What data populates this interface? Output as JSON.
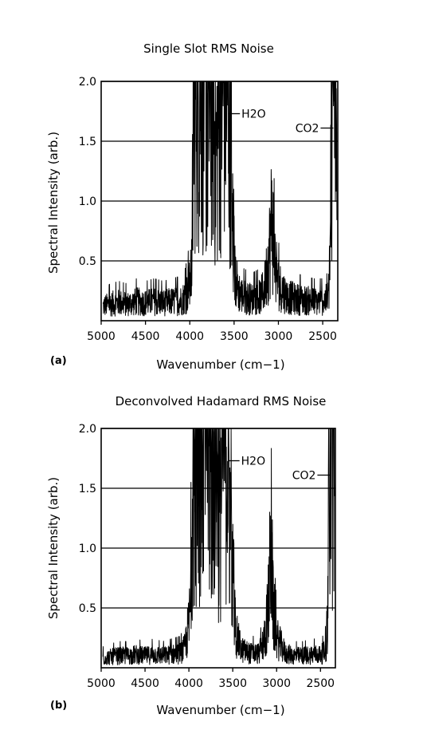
{
  "chart_data": [
    {
      "panel_label": "(a)",
      "type": "line",
      "title": "Single Slot RMS Noise",
      "xlabel": "Wavenumber (cm−1)",
      "ylabel": "Spectral Intensity (arb.)",
      "xlim": [
        5000,
        2330
      ],
      "ylim": [
        0,
        2.0
      ],
      "x_ticks": [
        5000,
        4500,
        4000,
        3500,
        3000,
        2500
      ],
      "x_tick_labels": [
        "5000",
        "4500",
        "4000",
        "3500",
        "3000",
        "2500"
      ],
      "y_ticks": [
        0.5,
        1.0,
        1.5,
        2.0
      ],
      "y_tick_labels": [
        "0.5",
        "1.0",
        "1.5",
        "2.0"
      ],
      "grid": "horizontal",
      "annotations": [
        {
          "text": "H2O",
          "x": 3560,
          "y": 1.73
        },
        {
          "text": "CO2",
          "x": 2380,
          "y": 1.61
        }
      ],
      "series": [
        {
          "values": [
            [
              4980,
              0.12
            ],
            [
              4900,
              0.14
            ],
            [
              4800,
              0.15
            ],
            [
              4700,
              0.14
            ],
            [
              4600,
              0.16
            ],
            [
              4500,
              0.15
            ],
            [
              4400,
              0.16
            ],
            [
              4300,
              0.15
            ],
            [
              4200,
              0.16
            ],
            [
              4100,
              0.17
            ],
            [
              4050,
              0.2
            ],
            [
              4000,
              0.3
            ],
            [
              3980,
              0.4
            ],
            [
              3950,
              2.0
            ],
            [
              3900,
              2.0
            ],
            [
              3850,
              2.0
            ],
            [
              3800,
              1.6
            ],
            [
              3750,
              2.0
            ],
            [
              3700,
              1.3
            ],
            [
              3650,
              2.0
            ],
            [
              3600,
              2.0
            ],
            [
              3550,
              1.8
            ],
            [
              3520,
              0.9
            ],
            [
              3500,
              0.4
            ],
            [
              3450,
              0.25
            ],
            [
              3400,
              0.2
            ],
            [
              3300,
              0.18
            ],
            [
              3200,
              0.2
            ],
            [
              3150,
              0.3
            ],
            [
              3100,
              0.6
            ],
            [
              3070,
              0.9
            ],
            [
              3050,
              0.55
            ],
            [
              3000,
              0.3
            ],
            [
              2900,
              0.2
            ],
            [
              2800,
              0.18
            ],
            [
              2700,
              0.17
            ],
            [
              2600,
              0.16
            ],
            [
              2500,
              0.16
            ],
            [
              2450,
              0.18
            ],
            [
              2420,
              0.3
            ],
            [
              2400,
              2.0
            ],
            [
              2380,
              2.0
            ],
            [
              2360,
              1.5
            ],
            [
              2350,
              2.0
            ],
            [
              2340,
              1.0
            ]
          ]
        }
      ]
    },
    {
      "panel_label": "(b)",
      "type": "line",
      "title": "Deconvolved Hadamard RMS Noise",
      "xlabel": "Wavenumber (cm−1)",
      "ylabel": "Spectral Intensity (arb.)",
      "xlim": [
        5000,
        2330
      ],
      "ylim": [
        0,
        2.0
      ],
      "x_ticks": [
        5000,
        4500,
        4000,
        3500,
        3000,
        2500
      ],
      "x_tick_labels": [
        "5000",
        "4500",
        "4000",
        "3500",
        "3000",
        "2500"
      ],
      "y_ticks": [
        0.5,
        1.0,
        1.5,
        2.0
      ],
      "y_tick_labels": [
        "0.5",
        "1.0",
        "1.5",
        "2.0"
      ],
      "grid": "horizontal",
      "annotations": [
        {
          "text": "H2O",
          "x": 3550,
          "y": 1.73
        },
        {
          "text": "CO2",
          "x": 2390,
          "y": 1.61
        }
      ],
      "series": [
        {
          "values": [
            [
              4980,
              0.08
            ],
            [
              4900,
              0.09
            ],
            [
              4800,
              0.1
            ],
            [
              4700,
              0.1
            ],
            [
              4600,
              0.11
            ],
            [
              4500,
              0.1
            ],
            [
              4400,
              0.11
            ],
            [
              4300,
              0.1
            ],
            [
              4200,
              0.11
            ],
            [
              4100,
              0.12
            ],
            [
              4050,
              0.16
            ],
            [
              4000,
              0.35
            ],
            [
              3980,
              0.55
            ],
            [
              3950,
              2.0
            ],
            [
              3900,
              2.0
            ],
            [
              3850,
              2.0
            ],
            [
              3800,
              2.0
            ],
            [
              3750,
              1.5
            ],
            [
              3700,
              2.0
            ],
            [
              3650,
              1.2
            ],
            [
              3600,
              2.0
            ],
            [
              3580,
              2.0
            ],
            [
              3550,
              1.6
            ],
            [
              3520,
              1.0
            ],
            [
              3500,
              0.55
            ],
            [
              3450,
              0.25
            ],
            [
              3400,
              0.15
            ],
            [
              3300,
              0.12
            ],
            [
              3200,
              0.12
            ],
            [
              3150,
              0.2
            ],
            [
              3100,
              0.45
            ],
            [
              3060,
              1.05
            ],
            [
              3040,
              0.5
            ],
            [
              3000,
              0.25
            ],
            [
              2900,
              0.12
            ],
            [
              2800,
              0.1
            ],
            [
              2700,
              0.1
            ],
            [
              2600,
              0.11
            ],
            [
              2500,
              0.11
            ],
            [
              2450,
              0.13
            ],
            [
              2420,
              0.25
            ],
            [
              2400,
              2.0
            ],
            [
              2380,
              2.0
            ],
            [
              2360,
              1.6
            ],
            [
              2350,
              2.0
            ],
            [
              2340,
              1.2
            ]
          ]
        }
      ]
    }
  ]
}
